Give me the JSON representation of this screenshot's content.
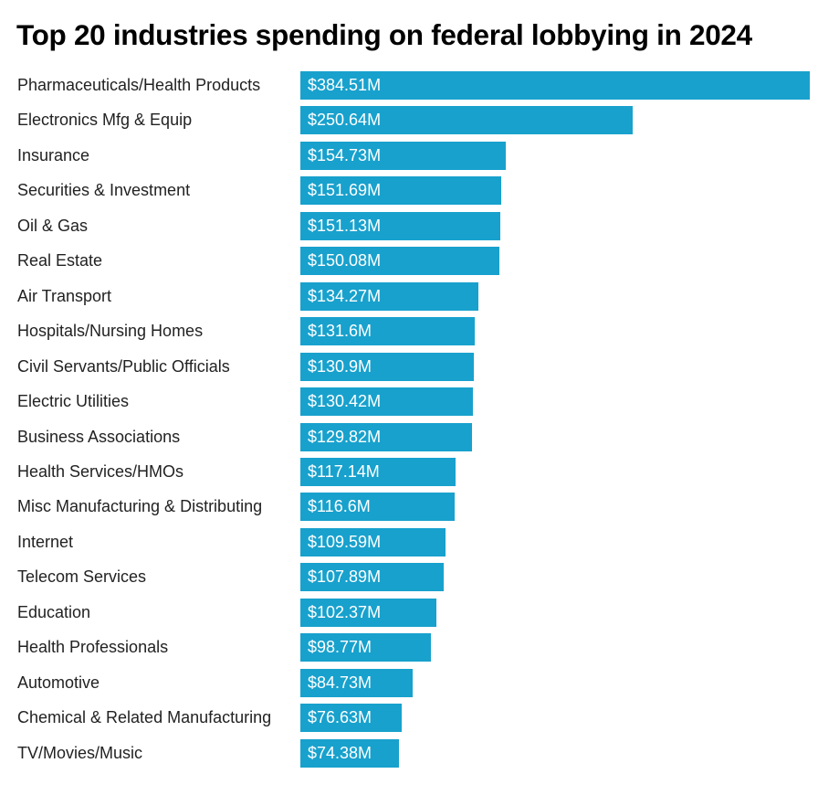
{
  "chart_data": {
    "type": "bar",
    "orientation": "horizontal",
    "title": "Top 20 industries spending on federal lobbying in 2024",
    "xlabel": "",
    "ylabel": "",
    "unit": "$M",
    "bar_color": "#18a1cd",
    "categories": [
      "Pharmaceuticals/Health Products",
      "Electronics Mfg & Equip",
      "Insurance",
      "Securities & Investment",
      "Oil & Gas",
      "Real Estate",
      "Air Transport",
      "Hospitals/Nursing Homes",
      "Civil Servants/Public Officials",
      "Electric Utilities",
      "Business Associations",
      "Health Services/HMOs",
      "Misc Manufacturing & Distributing",
      "Internet",
      "Telecom Services",
      "Education",
      "Health Professionals",
      "Automotive",
      "Chemical & Related Manufacturing",
      "TV/Movies/Music"
    ],
    "values": [
      384.51,
      250.64,
      154.73,
      151.69,
      151.13,
      150.08,
      134.27,
      131.6,
      130.9,
      130.42,
      129.82,
      117.14,
      116.6,
      109.59,
      107.89,
      102.37,
      98.77,
      84.73,
      76.63,
      74.38
    ],
    "data_labels": [
      "$384.51M",
      "$250.64M",
      "$154.73M",
      "$151.69M",
      "$151.13M",
      "$150.08M",
      "$134.27M",
      "$131.6M",
      "$130.9M",
      "$130.42M",
      "$129.82M",
      "$117.14M",
      "$116.6M",
      "$109.59M",
      "$107.89M",
      "$102.37M",
      "$98.77M",
      "$84.73M",
      "$76.63M",
      "$74.38M"
    ],
    "xlim": [
      0,
      384.51
    ],
    "grid": false,
    "legend": "none"
  }
}
